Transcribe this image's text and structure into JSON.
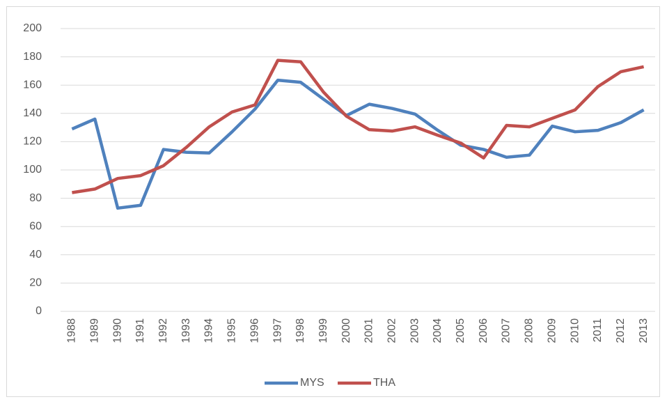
{
  "chart_data": {
    "type": "line",
    "categories": [
      "1988",
      "1989",
      "1990",
      "1991",
      "1992",
      "1993",
      "1994",
      "1995",
      "1996",
      "1997",
      "1998",
      "1999",
      "2000",
      "2001",
      "2002",
      "2003",
      "2004",
      "2005",
      "2006",
      "2007",
      "2008",
      "2009",
      "2010",
      "2011",
      "2012",
      "2013"
    ],
    "series": [
      {
        "name": "MYS",
        "color": "#4f81bd",
        "values": [
          129,
          136,
          73,
          75,
          114.5,
          112.5,
          112,
          127,
          143,
          163.5,
          162,
          150,
          138.5,
          146.5,
          143.5,
          139.5,
          128,
          117.5,
          114.5,
          109,
          110.5,
          131,
          127,
          128,
          133.5,
          142.5
        ]
      },
      {
        "name": "THA",
        "color": "#c0504d",
        "values": [
          84,
          86.5,
          94,
          96,
          103,
          116,
          130.5,
          141,
          146,
          177.5,
          176.5,
          155,
          138,
          128.5,
          127.5,
          130.5,
          124.5,
          119,
          108.5,
          131.5,
          130.5,
          136.5,
          142.5,
          159,
          169.5,
          173
        ]
      }
    ],
    "ylim": [
      0,
      200
    ],
    "yticks": [
      0,
      20,
      40,
      60,
      80,
      100,
      120,
      140,
      160,
      180,
      200
    ],
    "grid": true,
    "legend": "bottom"
  }
}
